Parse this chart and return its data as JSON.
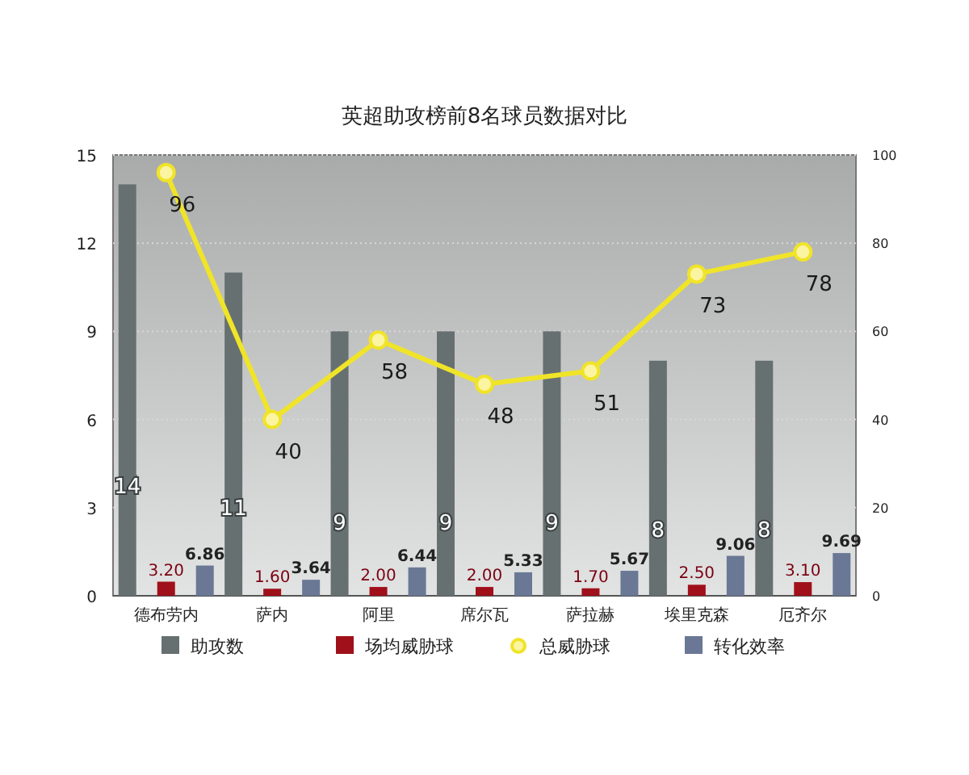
{
  "chart_data": {
    "type": "bar",
    "title": "英超助攻榜前8名球员数据对比",
    "categories": [
      "德布劳内",
      "萨内",
      "阿里",
      "席尔瓦",
      "萨拉赫",
      "埃里克森",
      "厄齐尔"
    ],
    "series": [
      {
        "name": "助攻数",
        "color": "#677071",
        "values": [
          14,
          11,
          9,
          9,
          9,
          8,
          8
        ]
      },
      {
        "name": "场均威胁球",
        "color": "#a0101a",
        "axis": "y2",
        "values": [
          3.2,
          1.6,
          2.0,
          2.0,
          1.7,
          2.5,
          3.1
        ],
        "value_labels": [
          "3.20",
          "1.60",
          "2.00",
          "2.00",
          "1.70",
          "2.50",
          "3.10"
        ]
      },
      {
        "name": "总威胁球",
        "type": "line",
        "color": "#f0e428",
        "axis": "y2",
        "marker": "circle",
        "values": [
          96,
          40,
          58,
          48,
          51,
          73,
          78
        ]
      },
      {
        "name": "转化效率",
        "color": "#6a7896",
        "axis": "y2",
        "values": [
          6.86,
          3.64,
          6.44,
          5.33,
          5.67,
          9.06,
          9.69
        ],
        "value_labels": [
          "6.86",
          "3.64",
          "6.44",
          "5.33",
          "5.67",
          "9.06",
          "9.69"
        ]
      }
    ],
    "ylim": [
      0,
      15
    ],
    "yticks": [
      0,
      3,
      6,
      9,
      12,
      15
    ],
    "y2lim": [
      0,
      100
    ],
    "y2ticks": [
      0,
      20,
      40,
      60,
      80,
      100
    ],
    "grid": "y",
    "legend": "bottom",
    "data_labels": true
  }
}
